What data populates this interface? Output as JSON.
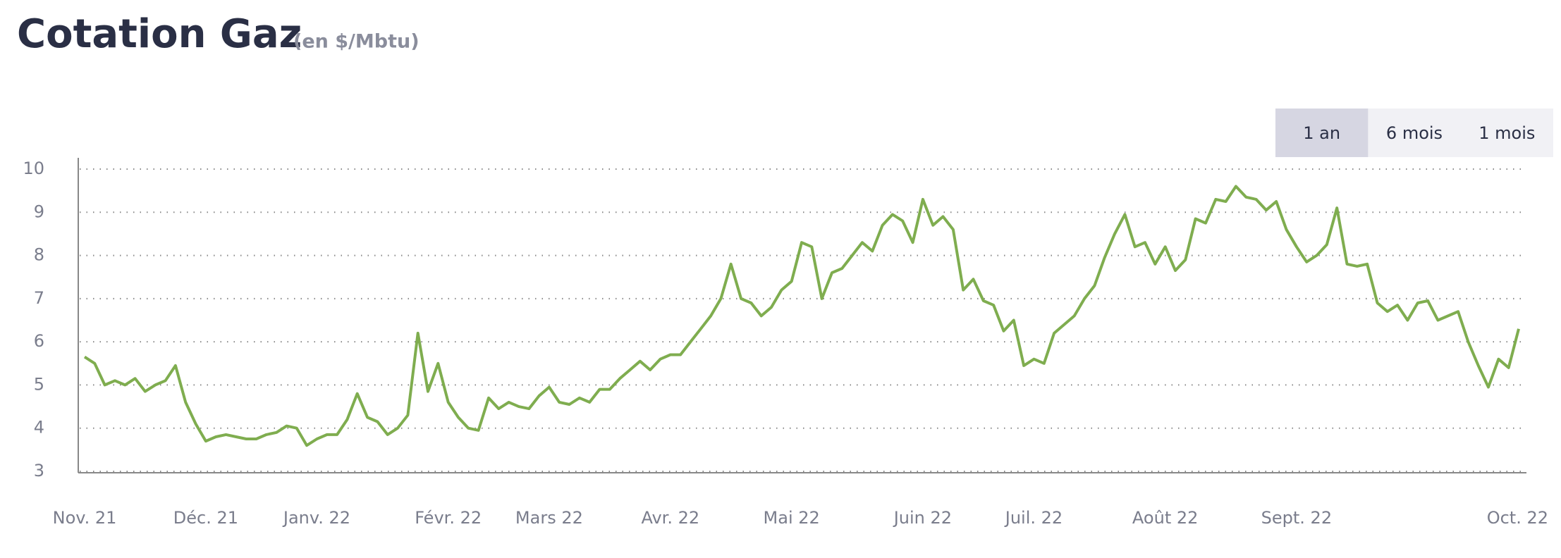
{
  "header": {
    "title": "Cotation Gaz",
    "subtitle": "(en $/Mbtu)"
  },
  "controls": {
    "buttons": [
      "1 an",
      "6 mois",
      "1 mois"
    ],
    "active": 0
  },
  "chart_data": {
    "type": "line",
    "color": "#7fad4f",
    "grid": true,
    "series": [
      {
        "values": [
          5.65,
          5.5,
          5.0,
          5.1,
          5.0,
          5.15,
          4.85,
          5.0,
          5.1,
          5.45,
          4.6,
          4.1,
          3.7,
          3.8,
          3.85,
          3.8,
          3.75,
          3.75,
          3.85,
          3.9,
          4.05,
          4.0,
          3.6,
          3.75,
          3.85,
          3.85,
          4.2,
          4.8,
          4.25,
          4.15,
          3.85,
          4.0,
          4.3,
          6.2,
          4.85,
          5.5,
          4.6,
          4.25,
          4.0,
          3.95,
          4.7,
          4.45,
          4.6,
          4.5,
          4.45,
          4.75,
          4.95,
          4.6,
          4.55,
          4.7,
          4.6,
          4.9,
          4.9,
          5.15,
          5.35,
          5.55,
          5.35,
          5.6,
          5.7,
          5.7,
          6.0,
          6.3,
          6.6,
          7.0,
          7.8,
          7.0,
          6.9,
          6.6,
          6.8,
          7.2,
          7.4,
          8.3,
          8.2,
          7.0,
          7.6,
          7.7,
          8.0,
          8.3,
          8.1,
          8.7,
          8.95,
          8.8,
          8.3,
          9.3,
          8.7,
          8.9,
          8.6,
          7.2,
          7.45,
          6.95,
          6.85,
          6.25,
          6.5,
          5.45,
          5.6,
          5.5,
          6.2,
          6.4,
          6.6,
          7.0,
          7.3,
          7.95,
          8.5,
          8.95,
          8.2,
          8.3,
          7.8,
          8.2,
          7.65,
          7.9,
          8.85,
          8.75,
          9.3,
          9.25,
          9.6,
          9.35,
          9.3,
          9.05,
          9.25,
          8.6,
          8.2,
          7.85,
          8.0,
          8.25,
          9.1,
          7.8,
          7.75,
          7.8,
          6.9,
          6.7,
          6.85,
          6.5,
          6.9,
          6.95,
          6.5,
          6.6,
          6.7,
          6.0,
          5.45,
          4.95,
          5.6,
          5.4,
          6.3
        ]
      }
    ],
    "xlim": [
      0,
      142
    ],
    "xticks": [
      {
        "value": 0,
        "label": "Nov. 21"
      },
      {
        "value": 12,
        "label": "Déc. 21"
      },
      {
        "value": 23,
        "label": "Janv. 22"
      },
      {
        "value": 36,
        "label": "Févr. 22"
      },
      {
        "value": 46,
        "label": "Mars 22"
      },
      {
        "value": 58,
        "label": "Avr. 22"
      },
      {
        "value": 70,
        "label": "Mai 22"
      },
      {
        "value": 83,
        "label": "Juin 22"
      },
      {
        "value": 94,
        "label": "Juil. 22"
      },
      {
        "value": 107,
        "label": "Août 22"
      },
      {
        "value": 120,
        "label": "Sept. 22"
      },
      {
        "value": 142,
        "label": "Oct. 22"
      }
    ],
    "ylim": [
      3,
      10
    ],
    "yticks": [
      3,
      4,
      5,
      6,
      7,
      8,
      9,
      10
    ]
  }
}
